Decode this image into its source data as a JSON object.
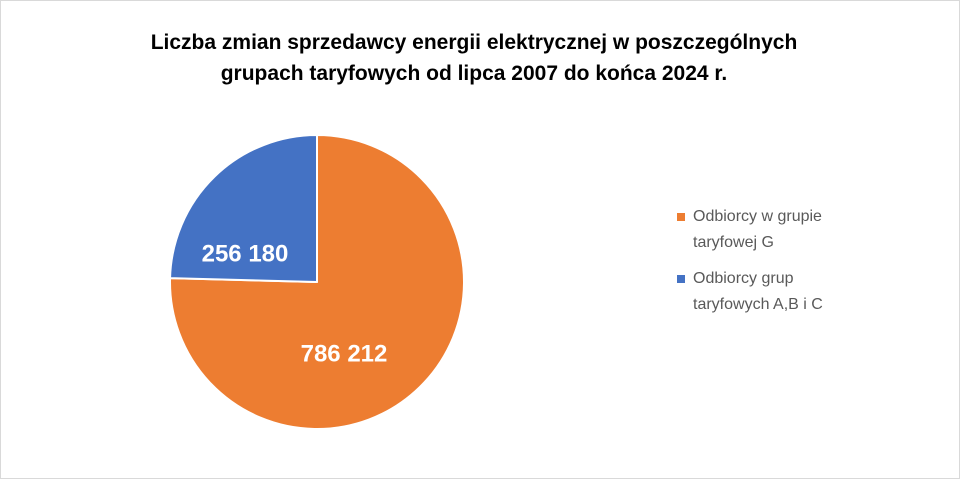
{
  "chart_data": {
    "type": "pie",
    "title_lines": [
      "Liczba zmian sprzedawcy energii elektrycznej w poszczególnych",
      "grupach taryfowych od lipca 2007 do końca 2024 r."
    ],
    "slices": [
      {
        "value": 786212,
        "data_label": "786 212",
        "legend_lines": [
          "Odbiorcy w grupie",
          "taryfowej G"
        ],
        "color": "#ed7d31"
      },
      {
        "value": 256180,
        "data_label": "256 180",
        "legend_lines": [
          "Odbiorcy grup",
          "taryfowych A,B i C"
        ],
        "color": "#4472c4"
      }
    ],
    "start_angle": "12 o'clock",
    "direction": "clockwise",
    "legend_position": "right"
  }
}
